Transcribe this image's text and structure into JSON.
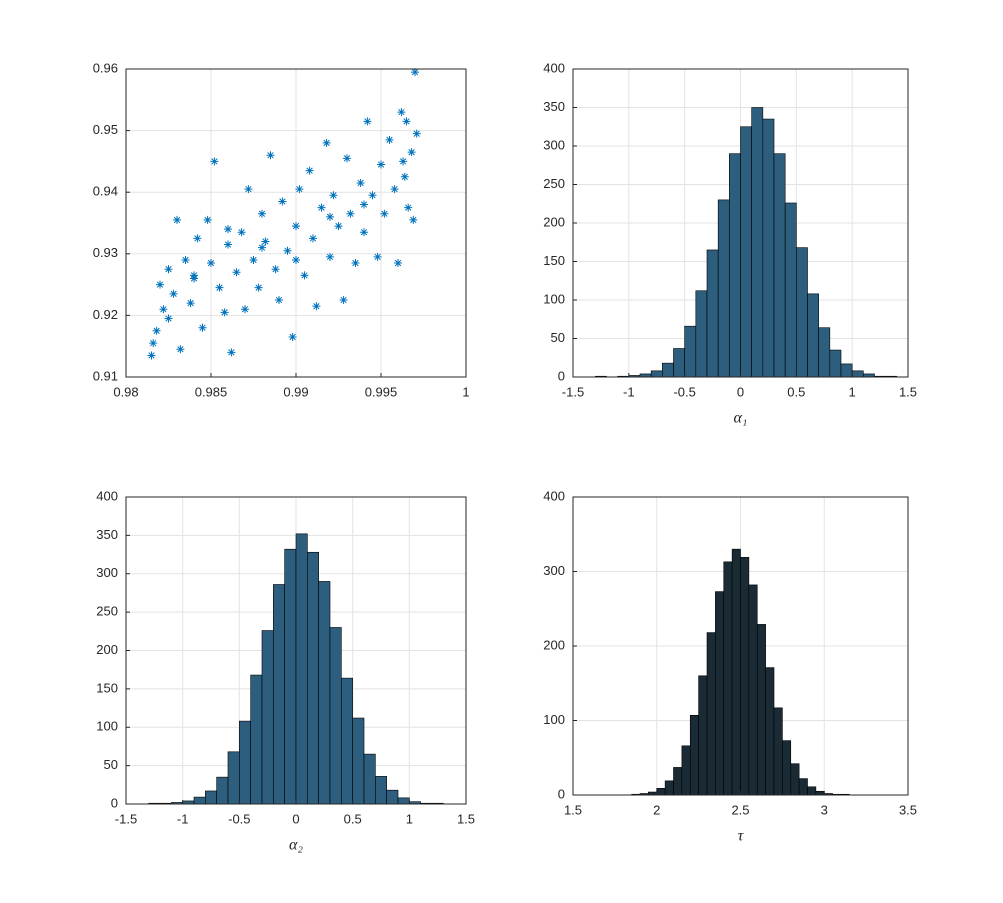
{
  "chart_data": [
    {
      "type": "scatter",
      "x": [
        0.9815,
        0.9816,
        0.9818,
        0.982,
        0.9822,
        0.9825,
        0.9828,
        0.983,
        0.9832,
        0.9835,
        0.9838,
        0.984,
        0.9842,
        0.9845,
        0.9848,
        0.985,
        0.9852,
        0.9855,
        0.9858,
        0.986,
        0.9862,
        0.9865,
        0.9868,
        0.987,
        0.9872,
        0.9875,
        0.9878,
        0.988,
        0.9882,
        0.9885,
        0.9888,
        0.989,
        0.9892,
        0.9895,
        0.9898,
        0.99,
        0.9902,
        0.9905,
        0.9908,
        0.991,
        0.9912,
        0.9915,
        0.9918,
        0.992,
        0.9922,
        0.9925,
        0.9928,
        0.993,
        0.9932,
        0.9935,
        0.9938,
        0.994,
        0.9942,
        0.9945,
        0.9948,
        0.995,
        0.9952,
        0.9955,
        0.9958,
        0.996,
        0.9962,
        0.9964,
        0.9966,
        0.9968,
        0.997,
        0.9971,
        0.9969,
        0.9965,
        0.9963,
        0.986,
        0.988,
        0.99,
        0.992,
        0.994,
        0.984,
        0.9825
      ],
      "values": [
        0.9135,
        0.9155,
        0.9175,
        0.925,
        0.921,
        0.9195,
        0.9235,
        0.9355,
        0.9145,
        0.929,
        0.922,
        0.9265,
        0.9325,
        0.918,
        0.9355,
        0.9285,
        0.945,
        0.9245,
        0.9205,
        0.9315,
        0.914,
        0.927,
        0.9335,
        0.921,
        0.9405,
        0.929,
        0.9245,
        0.9365,
        0.932,
        0.946,
        0.9275,
        0.9225,
        0.9385,
        0.9305,
        0.9165,
        0.9345,
        0.9405,
        0.9265,
        0.9435,
        0.9325,
        0.9215,
        0.9375,
        0.948,
        0.9295,
        0.9395,
        0.9345,
        0.9225,
        0.9455,
        0.9365,
        0.9285,
        0.9415,
        0.9335,
        0.9515,
        0.9395,
        0.9295,
        0.9445,
        0.9365,
        0.9485,
        0.9405,
        0.9285,
        0.953,
        0.9425,
        0.9375,
        0.9465,
        0.9595,
        0.9495,
        0.9355,
        0.9515,
        0.945,
        0.934,
        0.931,
        0.929,
        0.936,
        0.938,
        0.926,
        0.9275
      ],
      "color": "#0072bd",
      "xlim": [
        0.98,
        1
      ],
      "xticks": [
        0.98,
        0.985,
        0.99,
        0.995,
        1
      ],
      "ylim": [
        0.91,
        0.96
      ],
      "yticks": [
        0.91,
        0.92,
        0.93,
        0.94,
        0.95,
        0.96
      ],
      "grid": true
    },
    {
      "type": "histogram",
      "xlabel": "α₁",
      "bins": [
        -1.3,
        -1.2,
        -1.1,
        -1.0,
        -0.9,
        -0.8,
        -0.7,
        -0.6,
        -0.5,
        -0.4,
        -0.3,
        -0.2,
        -0.1,
        0,
        0.1,
        0.2,
        0.3,
        0.4,
        0.5,
        0.6,
        0.7,
        0.8,
        0.9,
        1.0,
        1.1,
        1.2,
        1.3,
        1.4
      ],
      "values": [
        1,
        0,
        1,
        2,
        4,
        8,
        18,
        37,
        66,
        112,
        165,
        230,
        290,
        325,
        350,
        335,
        290,
        226,
        168,
        108,
        64,
        35,
        17,
        8,
        4,
        1,
        1
      ],
      "color": "#2e5e7e",
      "xlim": [
        -1.5,
        1.5
      ],
      "xticks": [
        -1.5,
        -1,
        -0.5,
        0,
        0.5,
        1,
        1.5
      ],
      "ylim": [
        0,
        400
      ],
      "yticks": [
        0,
        50,
        100,
        150,
        200,
        250,
        300,
        350,
        400
      ],
      "grid": true
    },
    {
      "type": "histogram",
      "xlabel": "α₂",
      "bins": [
        -1.4,
        -1.3,
        -1.2,
        -1.1,
        -1.0,
        -0.9,
        -0.8,
        -0.7,
        -0.6,
        -0.5,
        -0.4,
        -0.3,
        -0.2,
        -0.1,
        0,
        0.1,
        0.2,
        0.3,
        0.4,
        0.5,
        0.6,
        0.7,
        0.8,
        0.9,
        1.0,
        1.1,
        1.2,
        1.3
      ],
      "values": [
        0,
        1,
        1,
        2,
        4,
        9,
        17,
        35,
        68,
        108,
        168,
        226,
        286,
        332,
        352,
        328,
        290,
        230,
        164,
        112,
        65,
        36,
        18,
        8,
        3,
        1,
        1
      ],
      "color": "#2e5e7e",
      "xlim": [
        -1.5,
        1.5
      ],
      "xticks": [
        -1.5,
        -1,
        -0.5,
        0,
        0.5,
        1,
        1.5
      ],
      "ylim": [
        0,
        400
      ],
      "yticks": [
        0,
        50,
        100,
        150,
        200,
        250,
        300,
        350,
        400
      ],
      "grid": true
    },
    {
      "type": "histogram",
      "xlabel": "τ",
      "bins": [
        1.85,
        1.9,
        1.95,
        2.0,
        2.05,
        2.1,
        2.15,
        2.2,
        2.25,
        2.3,
        2.35,
        2.4,
        2.45,
        2.5,
        2.55,
        2.6,
        2.65,
        2.7,
        2.75,
        2.8,
        2.85,
        2.9,
        2.95,
        3.0,
        3.05,
        3.1,
        3.15
      ],
      "values": [
        1,
        2,
        4,
        9,
        19,
        37,
        66,
        107,
        160,
        218,
        273,
        313,
        330,
        319,
        282,
        229,
        171,
        117,
        73,
        42,
        22,
        11,
        5,
        2,
        1,
        1
      ],
      "color": "#1b2b36",
      "xlim": [
        1.5,
        3.5
      ],
      "xticks": [
        1.5,
        2,
        2.5,
        3,
        3.5
      ],
      "ylim": [
        0,
        400
      ],
      "yticks": [
        0,
        100,
        200,
        300,
        400
      ],
      "grid": true
    }
  ]
}
